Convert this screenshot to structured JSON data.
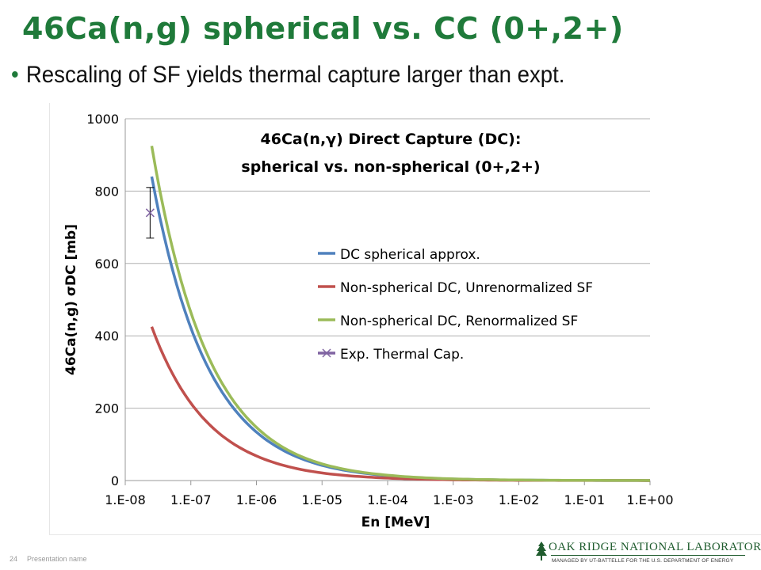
{
  "slide": {
    "title": "46Ca(n,g) spherical vs. CC (0+,2+)",
    "bullet": "Rescaling of SF yields thermal capture larger than expt.",
    "footer_page": "24",
    "footer_text": "Presentation name",
    "logo_text": "OAK RIDGE NATIONAL LABORATORY",
    "logo_subtext": "MANAGED BY UT-BATTELLE FOR THE U.S. DEPARTMENT OF ENERGY"
  },
  "colors": {
    "title": "#1f7a3a",
    "blue": "#4f81bd",
    "red": "#c0504d",
    "green": "#9bbb59",
    "purple": "#8064a2"
  },
  "chart_data": {
    "type": "line",
    "title_line1": "46Ca(n,γ) Direct Capture (DC):",
    "title_line2": "spherical vs. non-spherical (0+,2+)",
    "xlabel": "En [MeV]",
    "ylabel": "46Ca(n,g) σDC [mb]",
    "x_scale": "log",
    "xlim": [
      1e-08,
      1
    ],
    "ylim": [
      0,
      1000
    ],
    "y_ticks": [
      "0",
      "200",
      "400",
      "600",
      "800",
      "1000"
    ],
    "x_ticks": [
      "1.E-08",
      "1.E-07",
      "1.E-06",
      "1.E-05",
      "1.E-04",
      "1.E-03",
      "1.E-02",
      "1.E-01",
      "1.E+00"
    ],
    "grid": "horizontal",
    "legend_position": "center-right",
    "x": [
      2.53e-08,
      1e-07,
      1e-06,
      1e-05,
      0.0001,
      0.001,
      0.01,
      0.1,
      1
    ],
    "series": [
      {
        "name": "DC spherical approx.",
        "color": "#4f81bd",
        "values": [
          840,
          422,
          134,
          42,
          13.4,
          4.2,
          1.3,
          0.4,
          0.1
        ]
      },
      {
        "name": "Non-spherical DC, Unrenormalized SF",
        "color": "#c0504d",
        "values": [
          425,
          214,
          68,
          21,
          6.8,
          2.1,
          0.7,
          0.2,
          0.1
        ]
      },
      {
        "name": "Non-spherical DC, Renormalized SF",
        "color": "#9bbb59",
        "values": [
          925,
          465,
          147,
          46,
          14.7,
          4.6,
          1.5,
          0.5,
          0.1
        ]
      }
    ],
    "experiment": {
      "name": "Exp. Thermal Cap.",
      "color": "#8064a2",
      "x": 2.53e-08,
      "y": 740,
      "err": 70
    }
  }
}
